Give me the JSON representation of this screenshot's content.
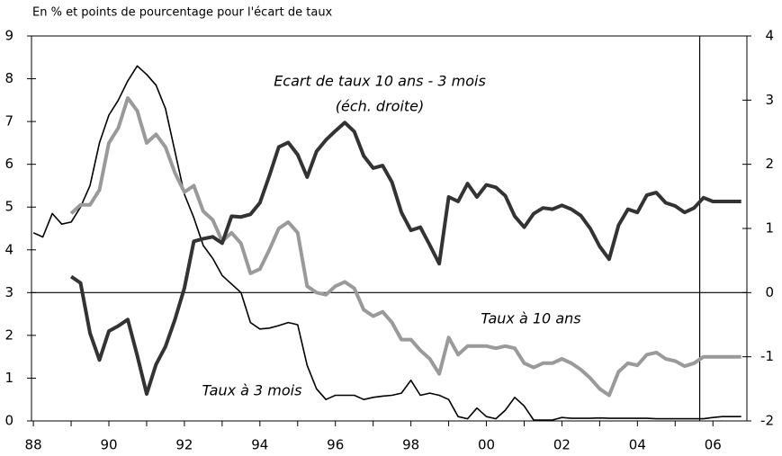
{
  "chart_data": {
    "type": "line",
    "title": "En % et points de pourcentage pour l'écart de taux",
    "note": "(éch. droite)",
    "x": [
      1988,
      1988.25,
      1988.5,
      1988.75,
      1989,
      1989.25,
      1989.5,
      1989.75,
      1990,
      1990.25,
      1990.5,
      1990.75,
      1991,
      1991.25,
      1991.5,
      1991.75,
      1992,
      1992.25,
      1992.5,
      1992.75,
      1993,
      1993.25,
      1993.5,
      1993.75,
      1994,
      1994.25,
      1994.5,
      1994.75,
      1995,
      1995.25,
      1995.5,
      1995.75,
      1996,
      1996.25,
      1996.5,
      1996.75,
      1997,
      1997.25,
      1997.5,
      1997.75,
      1998,
      1998.25,
      1998.5,
      1998.75,
      1999,
      1999.25,
      1999.5,
      1999.75,
      2000,
      2000.25,
      2000.5,
      2000.75,
      2001,
      2001.25,
      2001.5,
      2001.75,
      2002,
      2002.25,
      2002.5,
      2002.75,
      2003,
      2003.25,
      2003.5,
      2003.75,
      2004,
      2004.25,
      2004.5,
      2004.75,
      2005,
      2005.25,
      2005.5,
      2005.75,
      2006,
      2006.25,
      2006.5,
      2006.75
    ],
    "series": [
      {
        "name": "Taux à 3 mois",
        "color": "#000000",
        "width": 1.6,
        "axis": "y",
        "values": [
          4.4,
          4.3,
          4.85,
          4.6,
          4.65,
          5.0,
          5.5,
          6.5,
          7.15,
          7.5,
          7.95,
          8.3,
          8.1,
          7.85,
          7.3,
          6.3,
          5.3,
          4.75,
          4.1,
          3.8,
          3.4,
          3.2,
          3.0,
          2.3,
          2.15,
          2.17,
          2.23,
          2.3,
          2.25,
          1.3,
          0.75,
          0.5,
          0.6,
          0.6,
          0.6,
          0.5,
          0.55,
          0.58,
          0.6,
          0.65,
          0.95,
          0.6,
          0.65,
          0.6,
          0.5,
          0.1,
          0.05,
          0.3,
          0.1,
          0.05,
          0.25,
          0.55,
          0.35,
          0.02,
          0.02,
          0.02,
          0.08,
          0.06,
          0.06,
          0.06,
          0.07,
          0.06,
          0.06,
          0.06,
          0.06,
          0.06,
          0.05,
          0.05,
          0.05,
          0.05,
          0.05,
          0.05,
          0.08,
          0.1,
          0.1,
          0.1
        ]
      },
      {
        "name": "Taux à 10 ans",
        "color": "#9a9a9a",
        "width": 4,
        "axis": "y",
        "values": [
          null,
          null,
          null,
          null,
          4.85,
          5.05,
          5.05,
          5.4,
          6.5,
          6.85,
          7.55,
          7.25,
          6.5,
          6.7,
          6.4,
          5.8,
          5.35,
          5.5,
          4.9,
          4.7,
          4.2,
          4.4,
          4.15,
          3.45,
          3.55,
          4.0,
          4.5,
          4.65,
          4.4,
          3.15,
          3.0,
          2.95,
          3.15,
          3.25,
          3.1,
          2.6,
          2.45,
          2.55,
          2.3,
          1.9,
          1.9,
          1.65,
          1.45,
          1.1,
          1.95,
          1.55,
          1.75,
          1.75,
          1.75,
          1.7,
          1.75,
          1.7,
          1.35,
          1.25,
          1.35,
          1.35,
          1.45,
          1.35,
          1.2,
          1.0,
          0.75,
          0.6,
          1.15,
          1.35,
          1.3,
          1.55,
          1.6,
          1.45,
          1.4,
          1.28,
          1.35,
          1.5,
          1.5,
          1.5,
          1.5,
          1.5
        ]
      },
      {
        "name": "Ecart de taux 10 ans - 3 mois",
        "color": "#333333",
        "width": 4,
        "axis": "y2",
        "values": [
          null,
          null,
          null,
          null,
          0.25,
          0.15,
          -0.63,
          -1.05,
          -0.6,
          -0.52,
          -0.42,
          -0.98,
          -1.58,
          -1.12,
          -0.84,
          -0.42,
          0.07,
          0.8,
          0.84,
          0.87,
          0.77,
          1.19,
          1.18,
          1.22,
          1.4,
          1.82,
          2.27,
          2.34,
          2.15,
          1.8,
          2.2,
          2.38,
          2.52,
          2.65,
          2.51,
          2.13,
          1.94,
          1.98,
          1.72,
          1.25,
          0.97,
          1.02,
          0.74,
          0.45,
          1.49,
          1.42,
          1.7,
          1.49,
          1.68,
          1.64,
          1.51,
          1.19,
          1.02,
          1.23,
          1.32,
          1.3,
          1.36,
          1.3,
          1.2,
          1.0,
          0.72,
          0.52,
          1.05,
          1.3,
          1.25,
          1.52,
          1.56,
          1.4,
          1.35,
          1.25,
          1.32,
          1.48,
          1.42,
          1.42,
          1.42,
          1.42
        ]
      }
    ],
    "xlim": [
      1987.95,
      2006.9
    ],
    "xticks": [
      {
        "value": 1988,
        "label": "88"
      },
      {
        "value": 1990,
        "label": "90"
      },
      {
        "value": 1992,
        "label": "92"
      },
      {
        "value": 1994,
        "label": "94"
      },
      {
        "value": 1996,
        "label": "96"
      },
      {
        "value": 1998,
        "label": "98"
      },
      {
        "value": 2000,
        "label": "00"
      },
      {
        "value": 2002,
        "label": "02"
      },
      {
        "value": 2004,
        "label": "04"
      },
      {
        "value": 2006,
        "label": "06"
      }
    ],
    "ylim": [
      0,
      9
    ],
    "yticks": [
      0,
      1,
      2,
      3,
      4,
      5,
      6,
      7,
      8,
      9
    ],
    "y2lim": [
      -2,
      4
    ],
    "y2ticks": [
      -2,
      -1,
      0,
      1,
      2,
      3,
      4
    ],
    "y2_refline": 0,
    "vline": 2005.65
  }
}
